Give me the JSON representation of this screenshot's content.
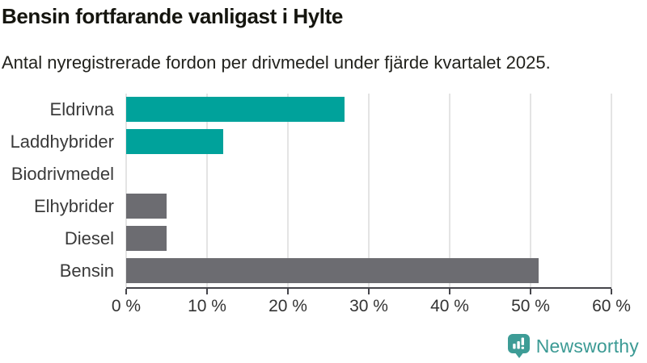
{
  "header": {
    "title": "Bensin fortfarande vanligast i Hylte",
    "subtitle": "Antal nyregistrerade fordon per drivmedel under fjärde kvartalet 2025."
  },
  "chart_data": {
    "type": "bar",
    "orientation": "horizontal",
    "title": "Bensin fortfarande vanligast i Hylte",
    "subtitle": "Antal nyregistrerade fordon per drivmedel under fjärde kvartalet 2025.",
    "categories": [
      "Eldrivna",
      "Laddhybrider",
      "Biodrivmedel",
      "Elhybrider",
      "Diesel",
      "Bensin"
    ],
    "values": [
      27,
      12,
      0,
      5,
      5,
      51
    ],
    "unit": "%",
    "colors": [
      "#00a29b",
      "#00a29b",
      "#6c6c71",
      "#6c6c71",
      "#6c6c71",
      "#6c6c71"
    ],
    "xlim": [
      0,
      60
    ],
    "xticks": [
      "0 %",
      "10 %",
      "20 %",
      "30 %",
      "40 %",
      "50 %",
      "60 %"
    ],
    "xtick_values": [
      0,
      10,
      20,
      30,
      40,
      50,
      60
    ],
    "grid": "vertical",
    "legend": "none"
  },
  "footer": {
    "brand": "Newsworthy",
    "brand_color": "#3b9a94"
  },
  "palette": {
    "highlight": "#00a29b",
    "neutral": "#6c6c71",
    "gridline": "#e4e4e4",
    "axis": "#45454b",
    "label_text": "#3a3a3a"
  }
}
